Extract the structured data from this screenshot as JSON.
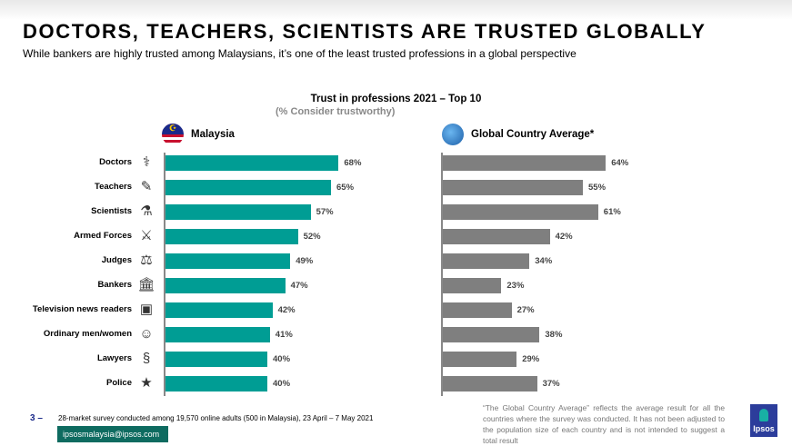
{
  "header": {
    "title": "DOCTORS, TEACHERS, SCIENTISTS ARE TRUSTED GLOBALLY",
    "subtitle": "While bankers are highly trusted among Malaysians, it’s one of the least trusted professions in a global perspective"
  },
  "chart_data": {
    "type": "bar",
    "orientation": "horizontal",
    "title": "Trust in professions 2021 – Top 10",
    "subtitle": "(% Consider trustworthy)",
    "categories": [
      "Doctors",
      "Teachers",
      "Scientists",
      "Armed Forces",
      "Judges",
      "Bankers",
      "Television news readers",
      "Ordinary men/women",
      "Lawyers",
      "Police"
    ],
    "icons": [
      "doctor-icon",
      "teacher-icon",
      "scientist-icon",
      "soldier-icon",
      "gavel-icon",
      "bank-icon",
      "tv-news-icon",
      "people-icon",
      "lawyer-icon",
      "police-icon"
    ],
    "series": [
      {
        "name": "Malaysia",
        "color": "#009d94",
        "values": [
          68,
          65,
          57,
          52,
          49,
          47,
          42,
          41,
          40,
          40
        ],
        "labels": [
          "68%",
          "65%",
          "57%",
          "52%",
          "49%",
          "47%",
          "42%",
          "41%",
          "40%",
          "40%"
        ]
      },
      {
        "name": "Global Country Average*",
        "color": "#7f7f7f",
        "values": [
          64,
          55,
          61,
          42,
          34,
          23,
          27,
          38,
          29,
          37
        ],
        "labels": [
          "64%",
          "55%",
          "61%",
          "42%",
          "34%",
          "23%",
          "27%",
          "38%",
          "29%",
          "37%"
        ]
      }
    ],
    "xlim": [
      0,
      100
    ]
  },
  "footer": {
    "page": "3 –",
    "source": "28-market survey conducted among 19,570 online adults (500 in Malaysia), 23 April – 7 May 2021",
    "email": "ipsosmalaysia@ipsos.com",
    "note": "“The Global Country Average” reflects the average result for all the countries where the survey was conducted. It has not been adjusted to the population size of each country and is not intended to suggest a total result",
    "logo": "Ipsos"
  }
}
